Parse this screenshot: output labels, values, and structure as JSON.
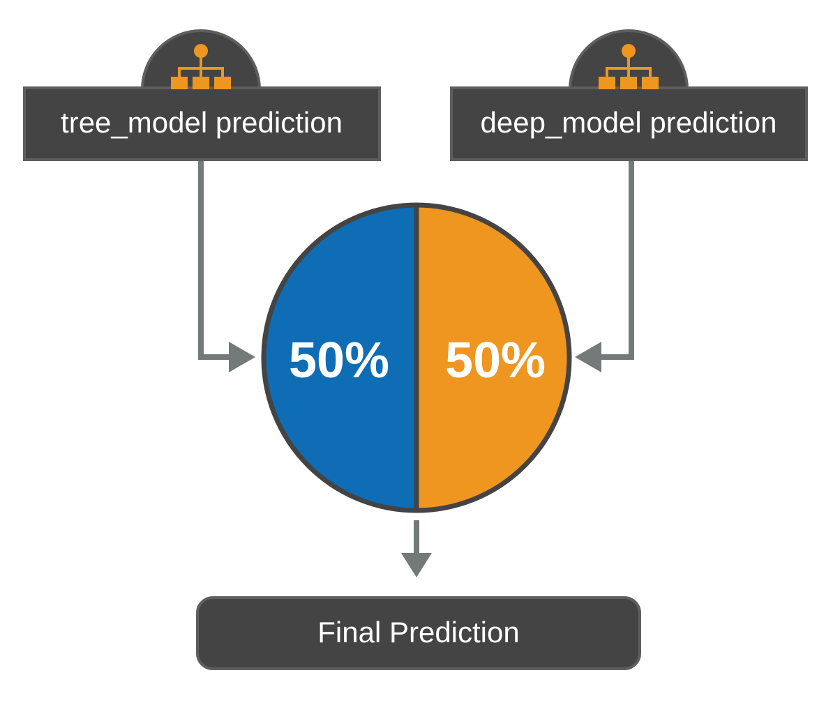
{
  "colors": {
    "box_fill": "#444444",
    "box_border": "#5e5e5e",
    "arrow": "#737a79",
    "tree_segment": "#0e6db5",
    "deep_segment": "#ef9620",
    "icon": "#ef9620",
    "circle_outline": "#444444"
  },
  "inputs": {
    "tree": {
      "label": "tree_model prediction",
      "icon": "hierarchy-icon"
    },
    "deep": {
      "label": "deep_model prediction",
      "icon": "hierarchy-icon"
    }
  },
  "ensemble": {
    "tree_weight": "50%",
    "deep_weight": "50%"
  },
  "output": {
    "label": "Final Prediction"
  }
}
